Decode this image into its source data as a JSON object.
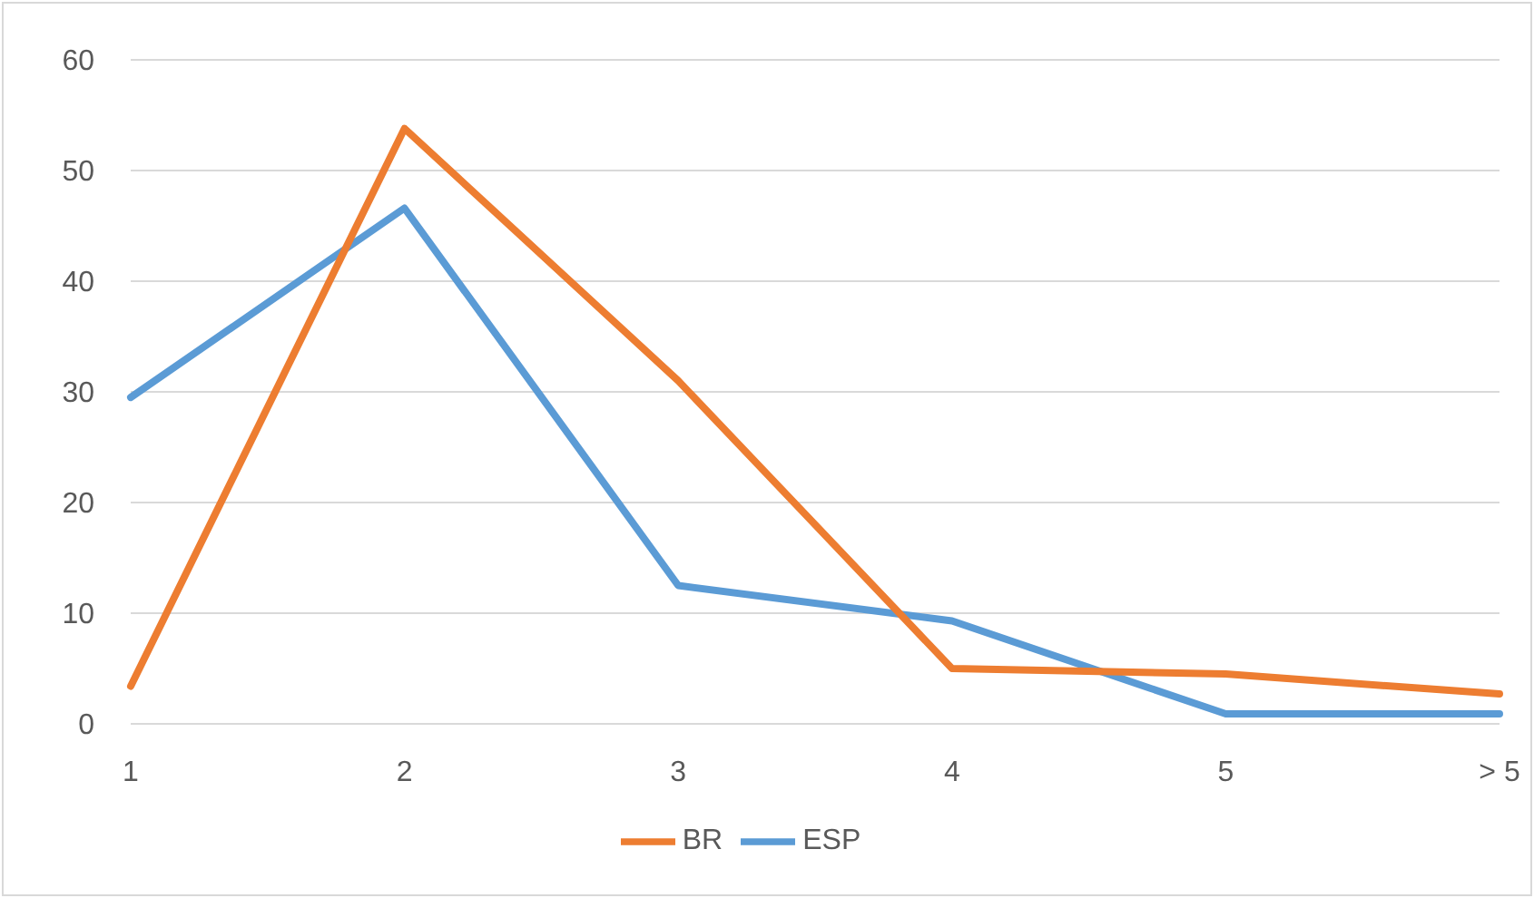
{
  "chart_data": {
    "type": "line",
    "categories": [
      "1",
      "2",
      "3",
      "4",
      "5",
      "> 5"
    ],
    "series": [
      {
        "name": "ESP",
        "color": "#5b9bd5",
        "values": [
          29.5,
          46.6,
          12.5,
          9.3,
          0.9,
          0.9
        ]
      },
      {
        "name": "BR",
        "color": "#ed7d31",
        "values": [
          3.4,
          53.8,
          31,
          5.0,
          4.5,
          2.7
        ]
      }
    ],
    "ylim": [
      0,
      60
    ],
    "yticks": [
      0,
      10,
      20,
      30,
      40,
      50,
      60
    ],
    "grid": "y",
    "legend": "bottom",
    "marker": "none",
    "line_style": "solid"
  }
}
